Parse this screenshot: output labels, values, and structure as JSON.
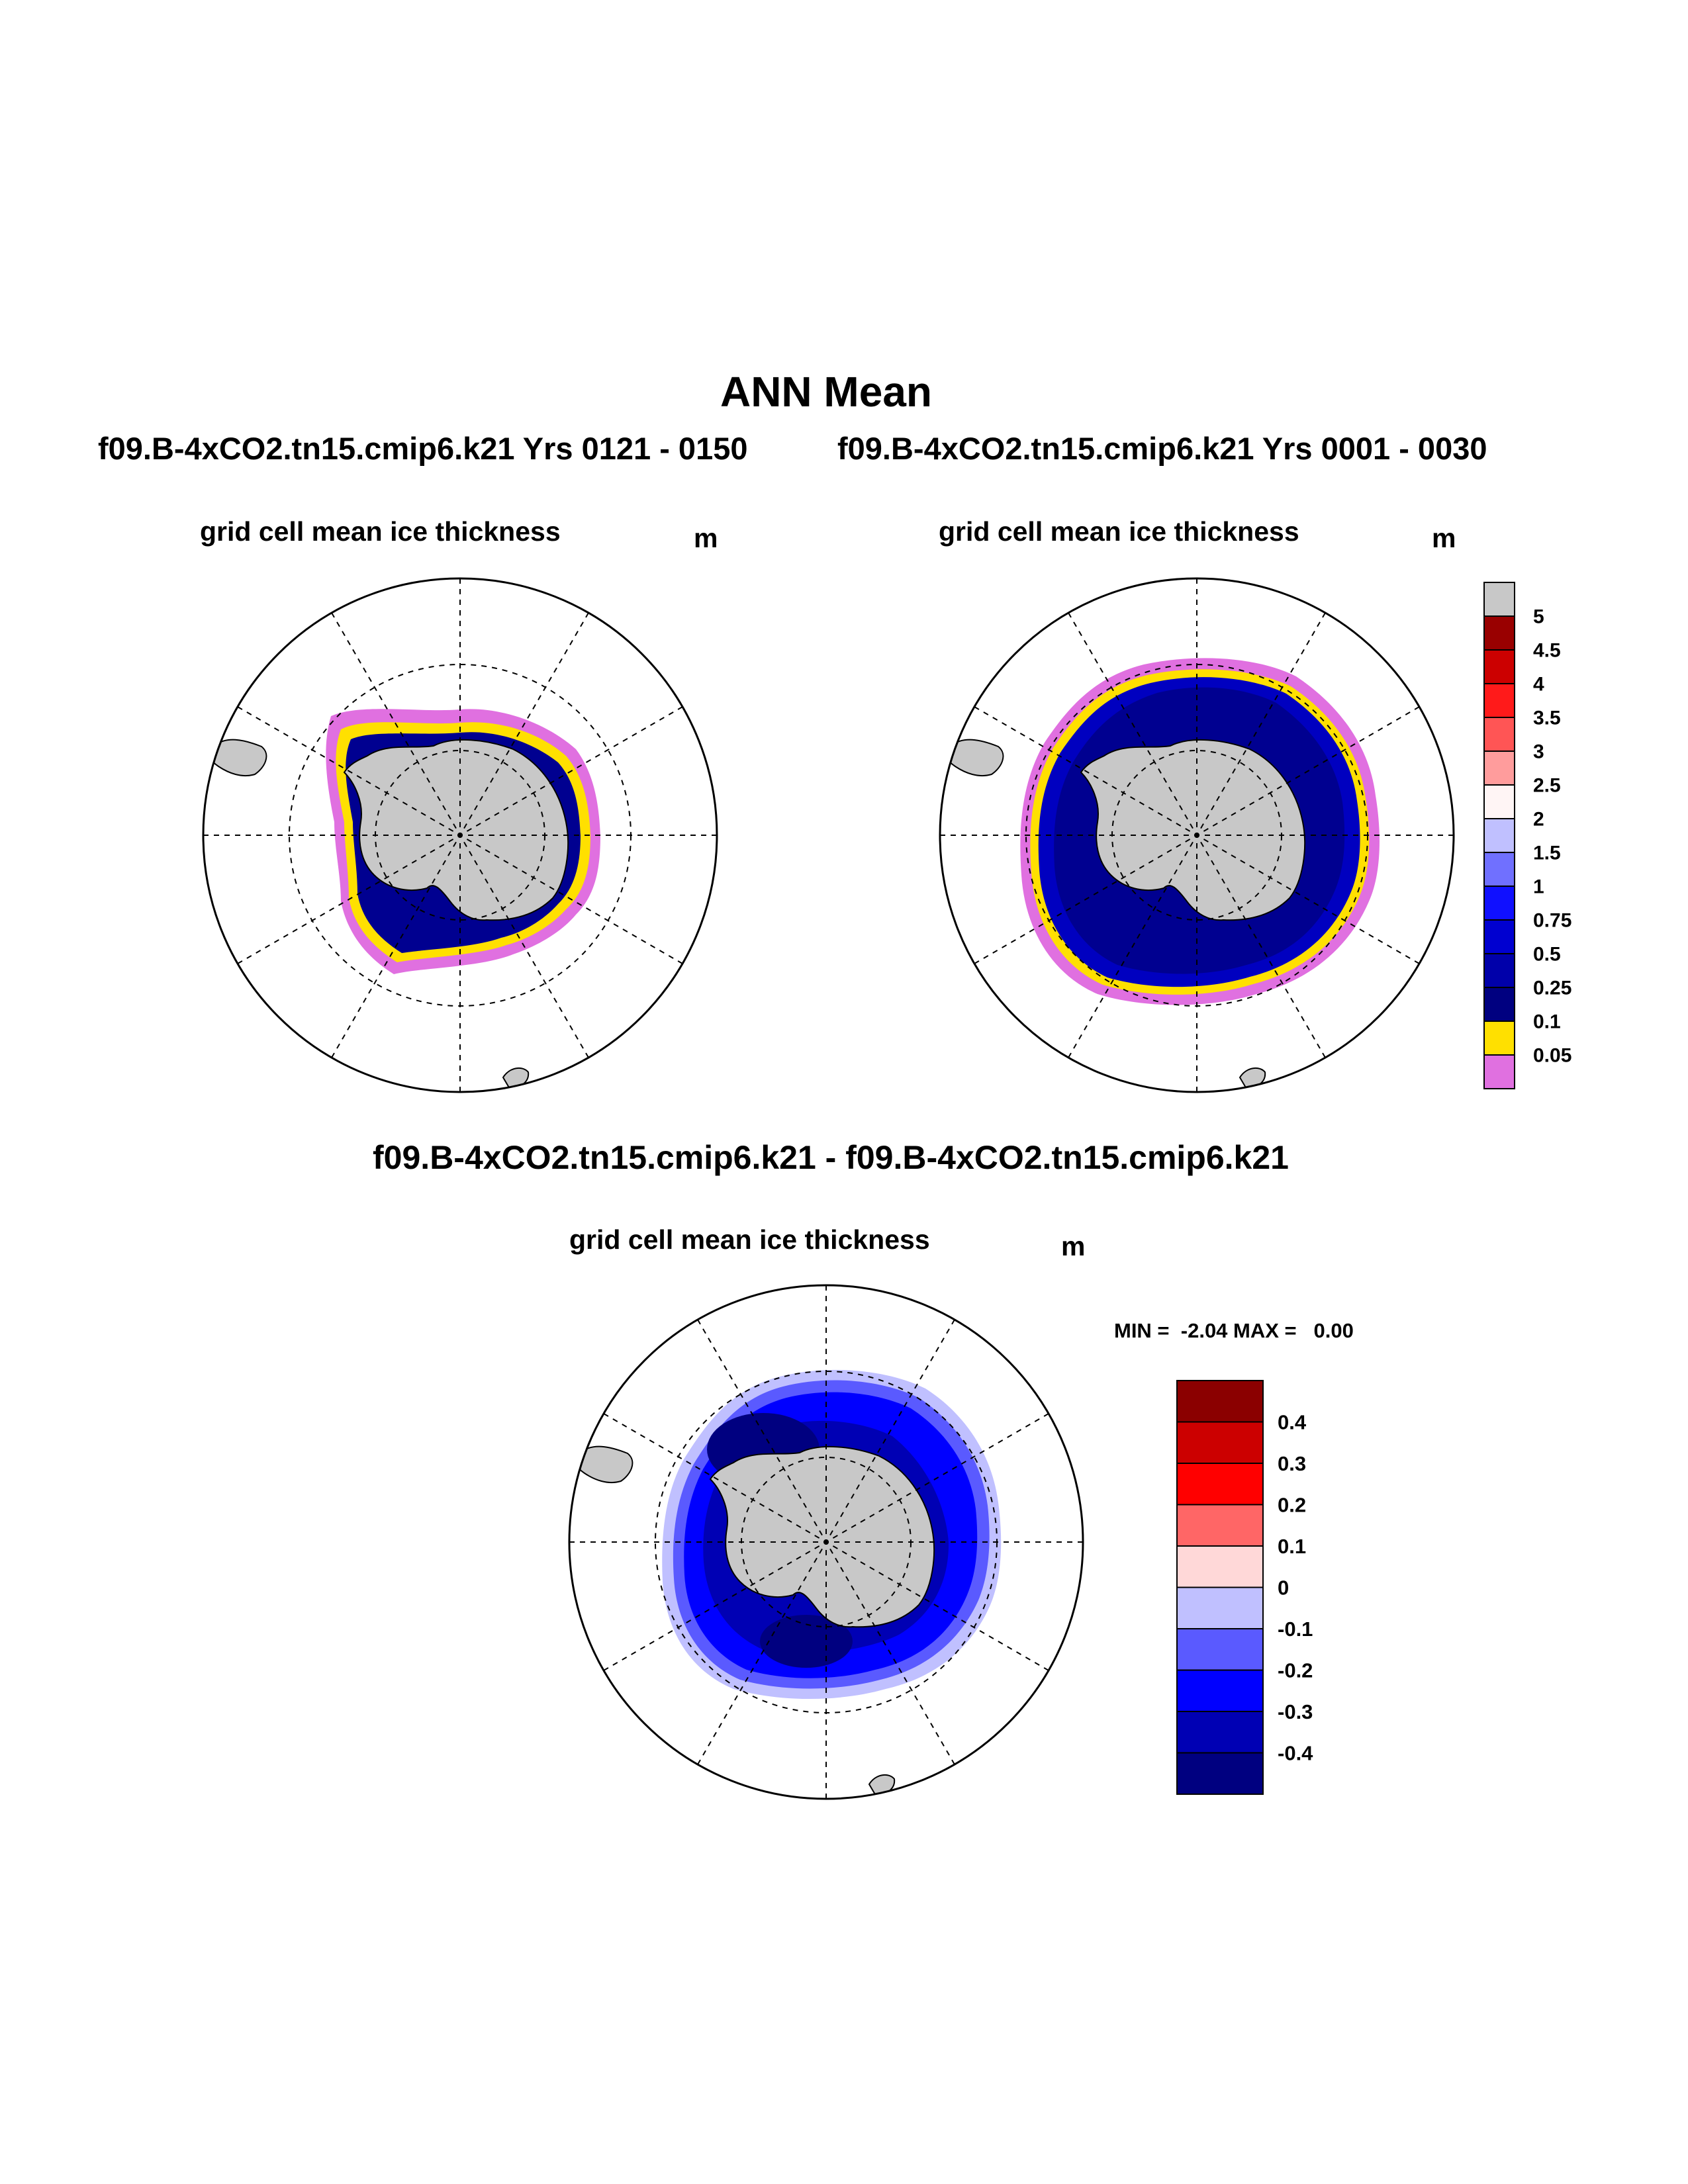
{
  "page": {
    "title": "ANN Mean",
    "subtitle_left": "f09.B-4xCO2.tn15.cmip6.k21  Yrs 0121 - 0150",
    "subtitle_right": "f09.B-4xCO2.tn15.cmip6.k21  Yrs 0001 - 0030",
    "diff_title": "f09.B-4xCO2.tn15.cmip6.k21 - f09.B-4xCO2.tn15.cmip6.k21"
  },
  "panels": {
    "left": {
      "variable": "grid cell mean ice thickness",
      "units": "m"
    },
    "right": {
      "variable": "grid cell mean ice thickness",
      "units": "m"
    },
    "diff": {
      "variable": "grid cell mean ice thickness",
      "units": "m",
      "stats": "MIN =  -2.04 MAX =   0.00"
    }
  },
  "colorbar_top": {
    "labels": [
      "5",
      "4.5",
      "4",
      "3.5",
      "3",
      "2.5",
      "2",
      "1.5",
      "1",
      "0.75",
      "0.5",
      "0.25",
      "0.1",
      "0.05"
    ],
    "colors": [
      "#c8c8c8",
      "#990000",
      "#cc0000",
      "#ff1a1a",
      "#ff5555",
      "#ff9c9c",
      "#fff5f5",
      "#c0c0ff",
      "#7070ff",
      "#1010ff",
      "#0000d0",
      "#0000aa",
      "#000080",
      "#ffe000",
      "#e070e0"
    ]
  },
  "colorbar_diff": {
    "labels": [
      "0.4",
      "0.3",
      "0.2",
      "0.1",
      "0",
      "-0.1",
      "-0.2",
      "-0.3",
      "-0.4"
    ],
    "colors": [
      "#8b0000",
      "#cc0000",
      "#ff0000",
      "#ff6666",
      "#ffd8d8",
      "#c0c0ff",
      "#5a5aff",
      "#0000ff",
      "#0000b4",
      "#000080"
    ]
  },
  "map_colors": {
    "land": "#c8c8c8",
    "grid": "#000000"
  }
}
